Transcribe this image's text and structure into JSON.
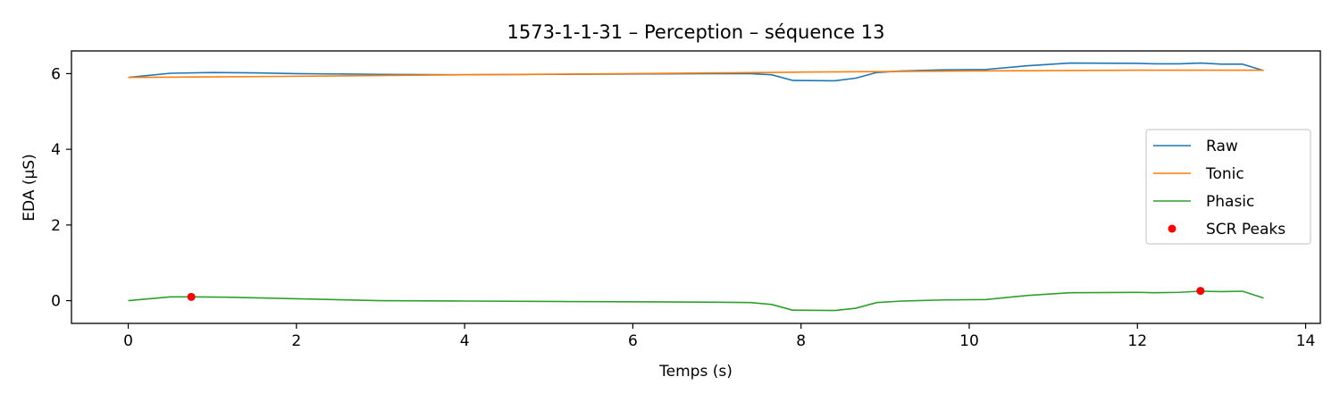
{
  "chart_data": {
    "type": "line",
    "title": "1573-1-1-31 – Perception – séquence 13",
    "xlabel": "Temps (s)",
    "ylabel": "EDA (µS)",
    "xlim": [
      -0.675,
      14.175
    ],
    "ylim": [
      -0.6,
      6.6
    ],
    "xticks": [
      0,
      2,
      4,
      6,
      8,
      10,
      12,
      14
    ],
    "yticks": [
      0,
      2,
      4,
      6
    ],
    "grid": false,
    "legend_position": "center-right",
    "series": [
      {
        "name": "Raw",
        "color": "#1f77b4",
        "type": "line",
        "x": [
          0,
          0.5,
          1.0,
          1.5,
          2.0,
          3.0,
          4.0,
          5.0,
          6.0,
          7.0,
          7.4,
          7.65,
          7.9,
          8.4,
          8.65,
          8.9,
          9.2,
          9.7,
          10.2,
          10.7,
          11.2,
          12.0,
          12.2,
          12.5,
          12.75,
          13.0,
          13.25,
          13.5
        ],
        "y": [
          5.9,
          6.01,
          6.03,
          6.02,
          6.0,
          5.98,
          5.97,
          5.98,
          5.99,
          6.0,
          6.0,
          5.97,
          5.82,
          5.81,
          5.88,
          6.03,
          6.07,
          6.1,
          6.11,
          6.21,
          6.28,
          6.27,
          6.26,
          6.26,
          6.28,
          6.25,
          6.25,
          6.08
        ]
      },
      {
        "name": "Tonic",
        "color": "#ff7f0e",
        "type": "line",
        "x": [
          0,
          2,
          4,
          6,
          8,
          10,
          12,
          13.5
        ],
        "y": [
          5.9,
          5.93,
          5.97,
          6.0,
          6.04,
          6.07,
          6.09,
          6.09
        ]
      },
      {
        "name": "Phasic",
        "color": "#2ca02c",
        "type": "line",
        "x": [
          0,
          0.5,
          0.75,
          1.25,
          2.0,
          3.0,
          4.0,
          5.0,
          6.0,
          7.0,
          7.4,
          7.65,
          7.9,
          8.4,
          8.65,
          8.9,
          9.2,
          9.7,
          10.2,
          10.7,
          11.2,
          12.0,
          12.2,
          12.5,
          12.75,
          13.0,
          13.25,
          13.5
        ],
        "y": [
          0.0,
          0.1,
          0.1,
          0.09,
          0.05,
          0.0,
          -0.01,
          -0.02,
          -0.03,
          -0.04,
          -0.05,
          -0.1,
          -0.25,
          -0.26,
          -0.2,
          -0.05,
          -0.01,
          0.02,
          0.03,
          0.14,
          0.21,
          0.22,
          0.21,
          0.22,
          0.25,
          0.24,
          0.25,
          0.07
        ]
      },
      {
        "name": "SCR Peaks",
        "color": "#ff0000",
        "type": "scatter",
        "x": [
          0.75,
          12.75
        ],
        "y": [
          0.1,
          0.26
        ]
      }
    ]
  }
}
